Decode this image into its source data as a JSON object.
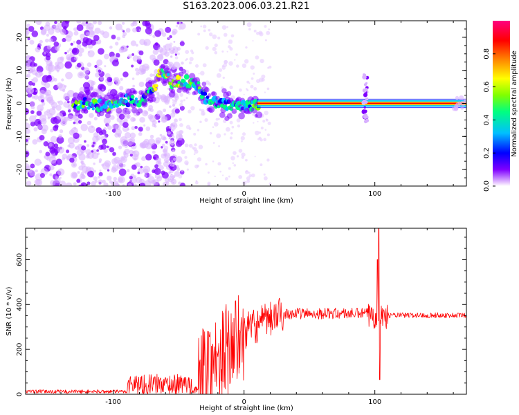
{
  "title": "S163.2023.006.03.21.R21",
  "chart_data": [
    {
      "type": "heatmap",
      "xlabel": "Height of straight line (km)",
      "ylabel": "Frequency (Hz)",
      "xlim": [
        -167,
        170
      ],
      "ylim": [
        -25,
        25
      ],
      "xticks": [
        -100,
        0,
        100
      ],
      "yticks": [
        -20,
        -10,
        0,
        10,
        20
      ],
      "colorbar": {
        "label": "Normalized spectral amplitude",
        "range": [
          0,
          1
        ],
        "ticks": [
          0.0,
          0.2,
          0.4,
          0.6,
          0.8
        ],
        "colormap": [
          "#ffffff",
          "#7f00ff",
          "#0000ff",
          "#00bfff",
          "#00ff80",
          "#80ff00",
          "#ffff00",
          "#ff8000",
          "#ff0000",
          "#ff00a0"
        ]
      },
      "ridge": {
        "description_points": [
          {
            "x": -125,
            "y": 0
          },
          {
            "x": -105,
            "y": -1
          },
          {
            "x": -90,
            "y": 1
          },
          {
            "x": -80,
            "y": 0
          },
          {
            "x": -70,
            "y": 4
          },
          {
            "x": -62,
            "y": 10
          },
          {
            "x": -55,
            "y": 6
          },
          {
            "x": -45,
            "y": 7
          },
          {
            "x": -35,
            "y": 5
          },
          {
            "x": -30,
            "y": 2
          },
          {
            "x": -22,
            "y": 0
          },
          {
            "x": -10,
            "y": -0.5
          },
          {
            "x": 0,
            "y": -1
          },
          {
            "x": 10,
            "y": 0
          },
          {
            "x": 170,
            "y": 0
          }
        ],
        "steady_band_x": [
          10,
          170
        ],
        "spike_x": 93
      }
    },
    {
      "type": "line",
      "xlabel": "Height of straight line (km)",
      "ylabel": "SNR (10 * v/v)",
      "xlim": [
        -167,
        170
      ],
      "ylim": [
        0,
        740
      ],
      "xticks": [
        -100,
        0,
        100
      ],
      "yticks": [
        0,
        200,
        400,
        600
      ],
      "color": "#ff0000",
      "segments": [
        {
          "x": [
            -167,
            -90
          ],
          "base": 12,
          "noise": 8
        },
        {
          "x": [
            -90,
            -40
          ],
          "base": 45,
          "noise": 45
        },
        {
          "x": [
            -40,
            -35
          ],
          "base": 20,
          "noise": 15
        },
        {
          "x": [
            -35,
            0
          ],
          "base": 120,
          "noise": 220
        },
        {
          "x": [
            0,
            30
          ],
          "base": 300,
          "noise": 80
        },
        {
          "x": [
            30,
            95
          ],
          "base": 360,
          "noise": 25
        },
        {
          "x": [
            95,
            110
          ],
          "base": 350,
          "noise": 60
        },
        {
          "x": [
            110,
            170
          ],
          "base": 352,
          "noise": 12
        }
      ],
      "spike": {
        "x": 103,
        "max": 740,
        "min": 65
      }
    }
  ]
}
